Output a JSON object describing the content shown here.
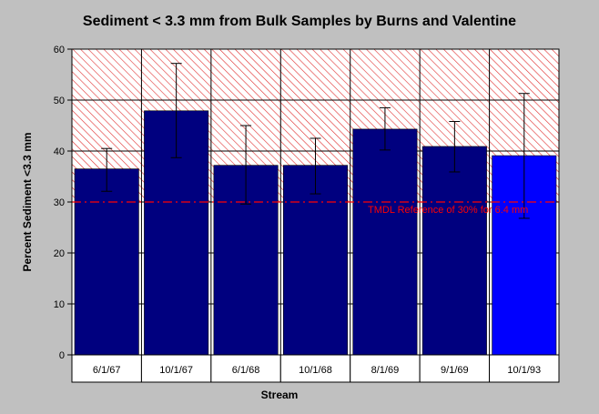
{
  "chart_data": {
    "type": "bar",
    "title": "Sediment < 3.3 mm from Bulk Samples by Burns and Valentine",
    "xlabel": "Stream",
    "ylabel": "Percent Sediment <3.3 mm",
    "ylim": [
      0,
      60
    ],
    "yticks": [
      0,
      10,
      20,
      30,
      40,
      50,
      60
    ],
    "grid": true,
    "categories": [
      "6/1/67",
      "10/1/67",
      "6/1/68",
      "10/1/68",
      "8/1/69",
      "9/1/69",
      "10/1/93"
    ],
    "values": [
      36.5,
      47.9,
      37.2,
      37.2,
      44.3,
      40.9,
      39.1
    ],
    "error_low": [
      32.1,
      38.7,
      29.6,
      31.6,
      40.2,
      35.9,
      26.8
    ],
    "error_high": [
      40.5,
      57.2,
      45.0,
      42.5,
      48.5,
      45.8,
      51.3
    ],
    "bar_colors": [
      "#00007f",
      "#00007f",
      "#00007f",
      "#00007f",
      "#00007f",
      "#00007f",
      "#0000ff"
    ],
    "reference_line": {
      "value": 30,
      "label": "TMDL Reference of 30% for 6.4 mm",
      "color": "#ff0000"
    },
    "shaded_region": {
      "from": 30,
      "to": 60,
      "pattern": "red-diagonal-hatch"
    }
  }
}
